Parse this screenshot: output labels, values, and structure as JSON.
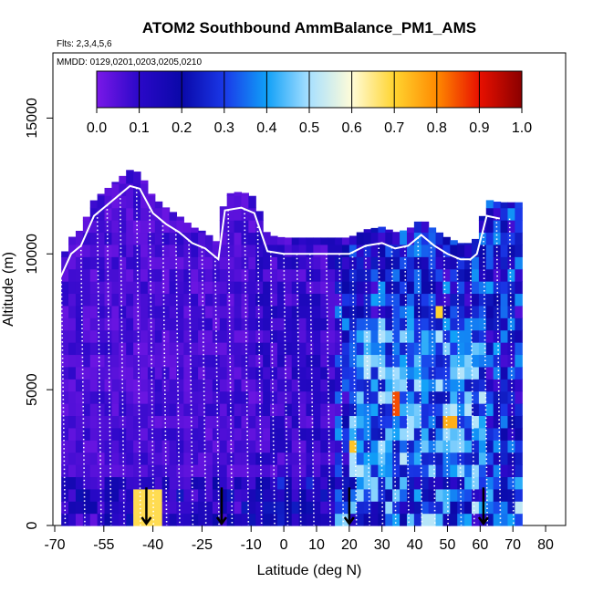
{
  "chart_data": {
    "type": "heatmap",
    "title": "ATOM2 Southbound AmmBalance_PM1_AMS",
    "subtitle_flights": "Flts: 2,3,4,5,6",
    "subtitle_dates": "MMDD: 0129,0201,0203,0205,0210",
    "xlabel": "Latitude (deg N)",
    "ylabel": "Altitude (m)",
    "xlim": [
      -70,
      85
    ],
    "ylim": [
      0,
      17500
    ],
    "x_ticks": [
      -70,
      -55,
      -40,
      -25,
      -10,
      0,
      10,
      20,
      30,
      40,
      50,
      60,
      70,
      80
    ],
    "y_ticks": [
      0,
      5000,
      10000,
      15000
    ],
    "colorbar": {
      "range": [
        0,
        1.0
      ],
      "tick_labels": [
        "0.0",
        "0.1",
        "0.2",
        "0.3",
        "0.4",
        "0.5",
        "0.6",
        "0.7",
        "0.8",
        "0.9",
        "1.0"
      ],
      "colors": [
        "#7a18e8",
        "#2a08c8",
        "#0a08a8",
        "#1a38e8",
        "#10a0f8",
        "#a8e0ff",
        "#fffcd8",
        "#ffd430",
        "#ff8a00",
        "#e81000",
        "#8a0000"
      ]
    },
    "profile_latitudes": [
      -68,
      -62,
      -57,
      -54,
      -50,
      -45,
      -41,
      -37,
      -33,
      -29,
      -25,
      -21,
      -17,
      -12,
      -8,
      -4,
      0,
      4,
      8,
      13,
      17,
      21,
      25,
      29,
      33,
      37,
      41,
      45,
      49,
      53,
      57,
      61,
      65,
      69
    ],
    "flight_path_ceiling_m": [
      [
        -68,
        9200
      ],
      [
        -65,
        10000
      ],
      [
        -62,
        10300
      ],
      [
        -58,
        11400
      ],
      [
        -52,
        12000
      ],
      [
        -47,
        12500
      ],
      [
        -44,
        12400
      ],
      [
        -40,
        11500
      ],
      [
        -36,
        11100
      ],
      [
        -32,
        10800
      ],
      [
        -28,
        10400
      ],
      [
        -24,
        10200
      ],
      [
        -20,
        9800
      ],
      [
        -18,
        11600
      ],
      [
        -13,
        11700
      ],
      [
        -9,
        11500
      ],
      [
        -5,
        10100
      ],
      [
        0,
        10000
      ],
      [
        5,
        10000
      ],
      [
        10,
        10000
      ],
      [
        15,
        10000
      ],
      [
        20,
        10000
      ],
      [
        25,
        10300
      ],
      [
        30,
        10400
      ],
      [
        34,
        10200
      ],
      [
        38,
        10300
      ],
      [
        42,
        10700
      ],
      [
        46,
        10300
      ],
      [
        50,
        10000
      ],
      [
        54,
        9800
      ],
      [
        57,
        9800
      ],
      [
        59,
        10000
      ],
      [
        62,
        11400
      ],
      [
        66,
        11300
      ]
    ],
    "high_value_regions": [
      {
        "lat": [
          -46,
          -38
        ],
        "alt": [
          0,
          1000
        ],
        "value": 0.68
      },
      {
        "lat": [
          32,
          35
        ],
        "alt": [
          4000,
          4700
        ],
        "value": 0.85
      },
      {
        "lat": [
          48,
          52
        ],
        "alt": [
          3200,
          3600
        ],
        "value": 0.75
      },
      {
        "lat": [
          20,
          22
        ],
        "alt": [
          2700,
          3100
        ],
        "value": 0.72
      },
      {
        "lat": [
          45,
          47
        ],
        "alt": [
          7600,
          8000
        ],
        "value": 0.7
      }
    ],
    "arrow_markers_lat": [
      -42,
      -19,
      20,
      61
    ]
  }
}
